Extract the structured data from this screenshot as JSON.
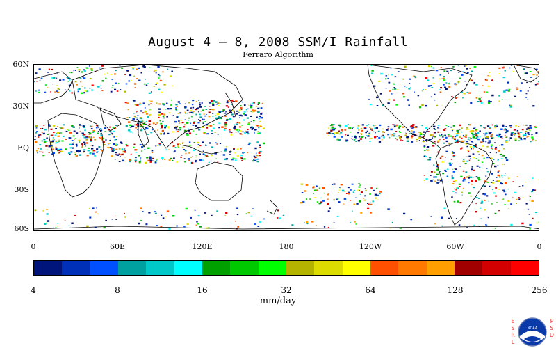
{
  "title": "August 4 – 8, 2008 SSM/I Rainfall",
  "subtitle": "Ferraro Algorithm",
  "lat_labels": [
    "60N",
    "30N",
    "EQ",
    "30S",
    "60S"
  ],
  "lon_labels": [
    "0",
    "60E",
    "120E",
    "180",
    "120W",
    "60W",
    "0"
  ],
  "colorbar": {
    "unit": "mm/day",
    "labels": [
      "4",
      "8",
      "16",
      "32",
      "64",
      "128",
      "256"
    ],
    "colors": [
      "#00157c",
      "#0030b8",
      "#0050ff",
      "#00a0a0",
      "#00c8c8",
      "#00ffff",
      "#00a000",
      "#00c800",
      "#00ff00",
      "#b4b400",
      "#dcdc00",
      "#ffff00",
      "#ff5000",
      "#ff7800",
      "#ffa000",
      "#a00000",
      "#d20000",
      "#ff0000"
    ]
  },
  "logo": {
    "left_letters": [
      "E",
      "S",
      "R",
      "L"
    ],
    "right_letters": [
      "P",
      "S",
      "D"
    ],
    "emblem": "NOAA",
    "icon": "noaa-logo-icon"
  }
}
